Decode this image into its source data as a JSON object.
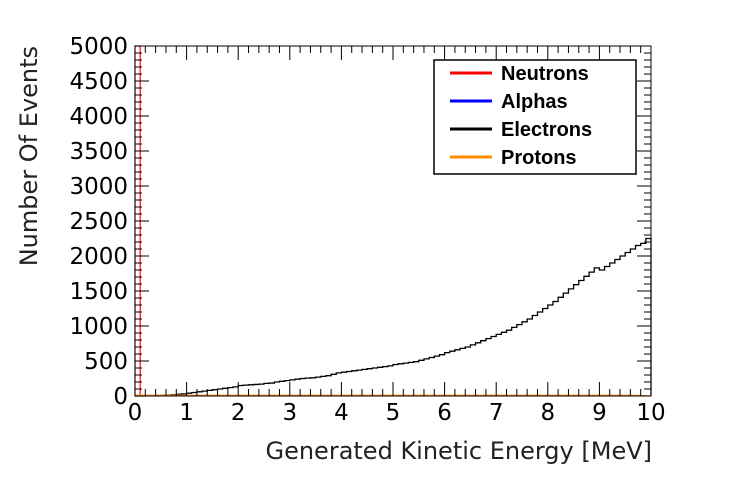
{
  "chart_data": {
    "type": "histogram",
    "title": "",
    "xlabel": "Generated Kinetic Energy [MeV]",
    "ylabel": "Number Of Events",
    "xlim": [
      0,
      10
    ],
    "ylim": [
      0,
      5000
    ],
    "x_ticks": [
      "0",
      "1",
      "2",
      "3",
      "4",
      "5",
      "6",
      "7",
      "8",
      "9",
      "10"
    ],
    "y_ticks": [
      "0",
      "500",
      "1000",
      "1500",
      "2000",
      "2500",
      "3000",
      "3500",
      "4000",
      "4500",
      "5000"
    ],
    "grid": false,
    "legend_position": "top-right",
    "bin_width": 0.1,
    "series": [
      {
        "name": "Neutrons",
        "color": "#ff0000",
        "x": [
          0.0
        ],
        "values": [
          5000
        ]
      },
      {
        "name": "Alphas",
        "color": "#0000ff",
        "x": [],
        "values": []
      },
      {
        "name": "Electrons",
        "color": "#000000",
        "x": [
          0.0,
          0.1,
          0.2,
          0.3,
          0.4,
          0.5,
          0.6,
          0.7,
          0.8,
          0.9,
          1.0,
          1.1,
          1.2,
          1.3,
          1.4,
          1.5,
          1.6,
          1.7,
          1.8,
          1.9,
          2.0,
          2.1,
          2.2,
          2.3,
          2.4,
          2.5,
          2.6,
          2.7,
          2.8,
          2.9,
          3.0,
          3.1,
          3.2,
          3.3,
          3.4,
          3.5,
          3.6,
          3.7,
          3.8,
          3.9,
          4.0,
          4.1,
          4.2,
          4.3,
          4.4,
          4.5,
          4.6,
          4.7,
          4.8,
          4.9,
          5.0,
          5.1,
          5.2,
          5.3,
          5.4,
          5.5,
          5.6,
          5.7,
          5.8,
          5.9,
          6.0,
          6.1,
          6.2,
          6.3,
          6.4,
          6.5,
          6.6,
          6.7,
          6.8,
          6.9,
          7.0,
          7.1,
          7.2,
          7.3,
          7.4,
          7.5,
          7.6,
          7.7,
          7.8,
          7.9,
          8.0,
          8.1,
          8.2,
          8.3,
          8.4,
          8.5,
          8.6,
          8.7,
          8.8,
          8.9,
          9.0,
          9.1,
          9.2,
          9.3,
          9.4,
          9.5,
          9.6,
          9.7,
          9.8,
          9.9
        ],
        "values": [
          0,
          0,
          2,
          5,
          8,
          10,
          14,
          18,
          25,
          30,
          40,
          50,
          60,
          70,
          80,
          90,
          100,
          110,
          120,
          130,
          150,
          155,
          160,
          165,
          170,
          180,
          185,
          200,
          210,
          220,
          230,
          240,
          250,
          255,
          260,
          270,
          280,
          290,
          310,
          330,
          340,
          350,
          360,
          370,
          380,
          390,
          400,
          410,
          420,
          430,
          450,
          460,
          470,
          480,
          490,
          510,
          530,
          550,
          570,
          590,
          620,
          640,
          660,
          680,
          700,
          730,
          760,
          790,
          820,
          850,
          880,
          910,
          940,
          980,
          1020,
          1060,
          1100,
          1150,
          1200,
          1250,
          1300,
          1350,
          1410,
          1470,
          1530,
          1590,
          1650,
          1710,
          1770,
          1830,
          1800,
          1850,
          1900,
          1950,
          2000,
          2050,
          2100,
          2150,
          2180,
          2250
        ]
      },
      {
        "name": "Protons",
        "color": "#ff8c00",
        "x": [
          0.0,
          0.5,
          1.0,
          1.5,
          2.0,
          2.5,
          3.0,
          3.5,
          4.0,
          4.5,
          5.0,
          5.5,
          6.0,
          6.5,
          7.0,
          7.5,
          8.0,
          8.5,
          9.0,
          9.5
        ],
        "values": [
          10,
          10,
          10,
          10,
          10,
          10,
          10,
          10,
          10,
          10,
          10,
          10,
          10,
          10,
          10,
          10,
          10,
          10,
          10,
          10
        ]
      }
    ]
  }
}
